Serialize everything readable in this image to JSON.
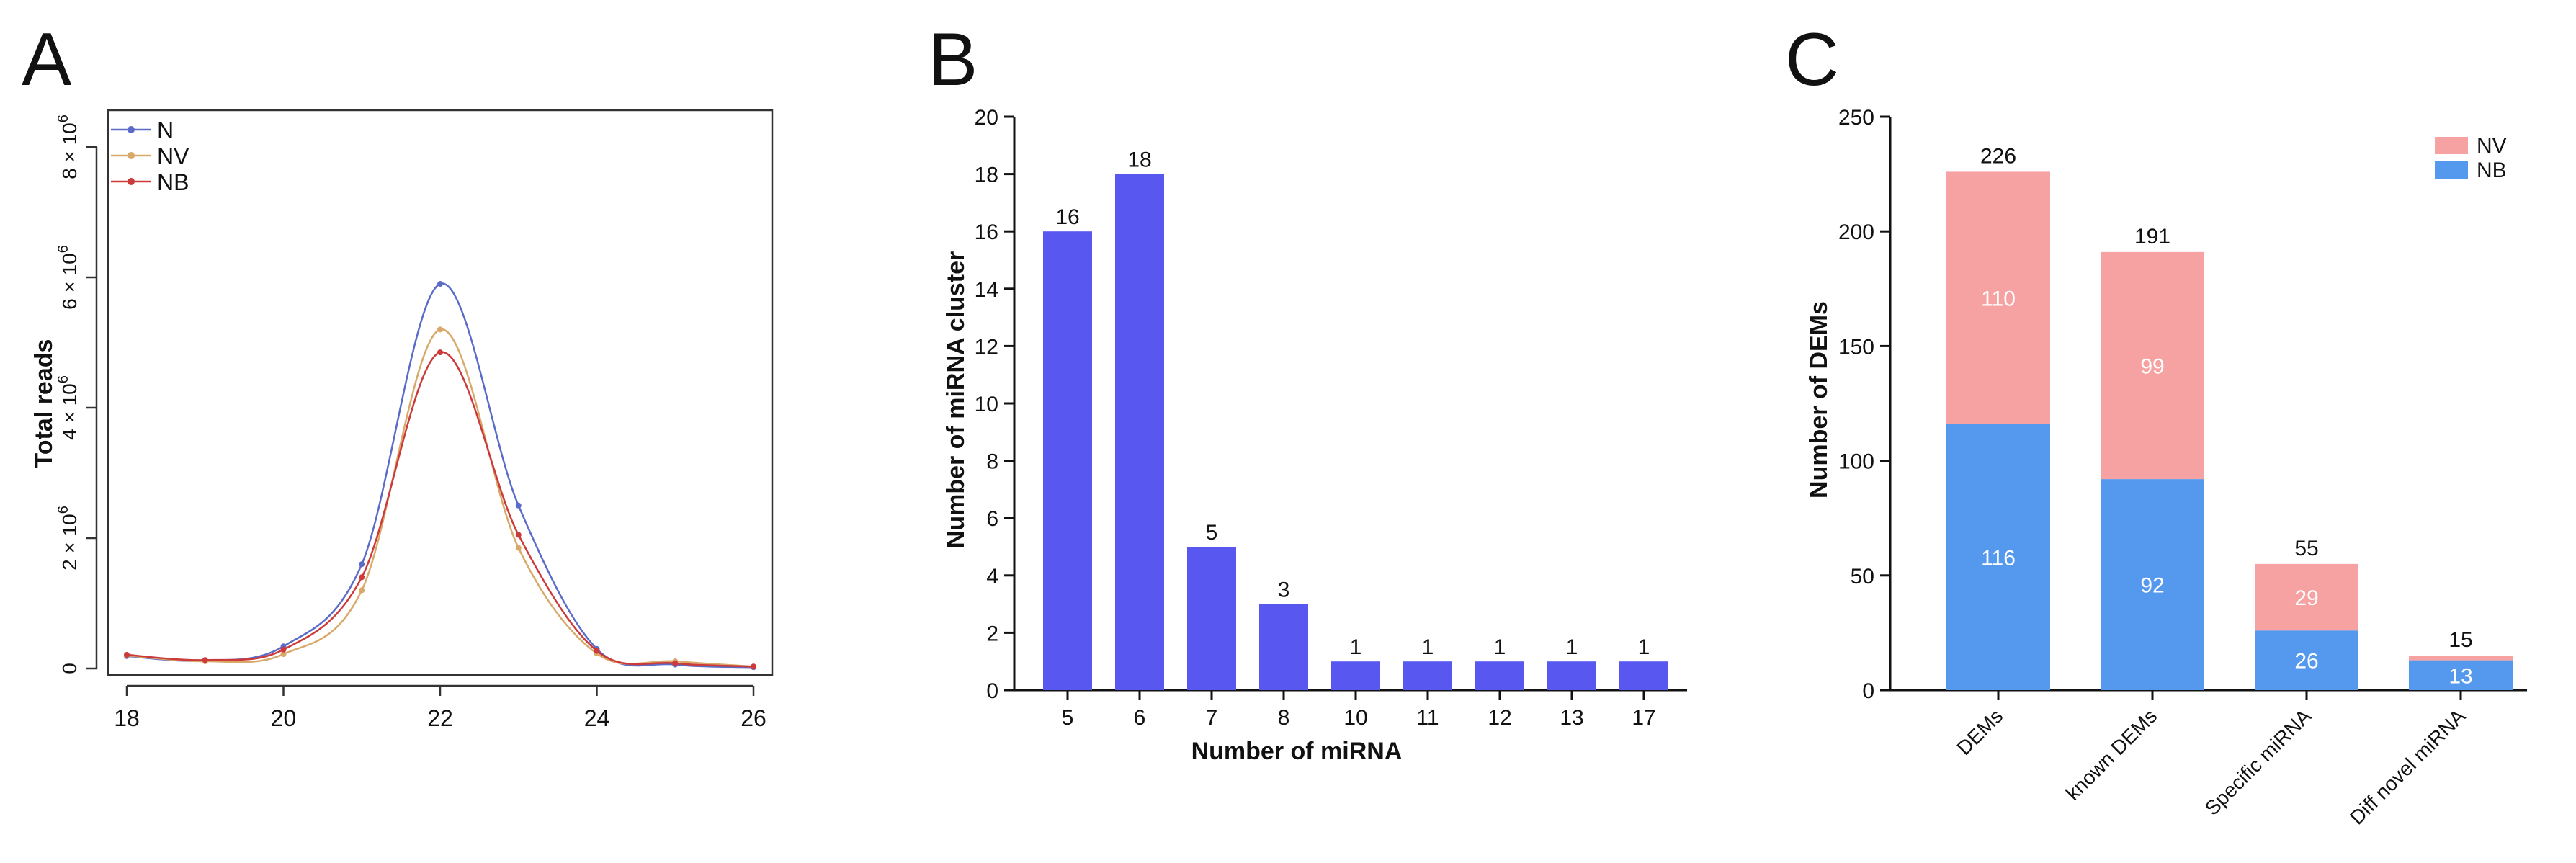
{
  "chart_data": [
    {
      "panel_letter": "A",
      "type": "line",
      "title": "",
      "xlabel": "",
      "ylabel": "Total reads",
      "xlim": [
        18,
        26
      ],
      "ylim": [
        0,
        8000000
      ],
      "x_ticks": [
        18,
        20,
        22,
        24,
        26
      ],
      "y_ticks": [
        {
          "value": 0,
          "base": "0",
          "exp": ""
        },
        {
          "value": 2000000,
          "base": "2 × 10",
          "exp": "6"
        },
        {
          "value": 4000000,
          "base": "4 × 10",
          "exp": "6"
        },
        {
          "value": 6000000,
          "base": "6 × 10",
          "exp": "6"
        },
        {
          "value": 8000000,
          "base": "8 × 10",
          "exp": "6"
        }
      ],
      "x": [
        18,
        19,
        20,
        21,
        22,
        23,
        24,
        25,
        26
      ],
      "series": [
        {
          "name": "N",
          "color": "#5a6cc8",
          "values": [
            190000,
            120000,
            340000,
            1600000,
            5900000,
            2500000,
            300000,
            60000,
            20000
          ]
        },
        {
          "name": "NV",
          "color": "#d9a96a",
          "values": [
            200000,
            110000,
            220000,
            1200000,
            5200000,
            1850000,
            230000,
            110000,
            30000
          ]
        },
        {
          "name": "NB",
          "color": "#cc3a3a",
          "values": [
            210000,
            130000,
            290000,
            1400000,
            4850000,
            2050000,
            270000,
            80000,
            30000
          ]
        }
      ],
      "legend": "top-left"
    },
    {
      "panel_letter": "B",
      "type": "bar",
      "title": "",
      "xlabel": "Number of miRNA",
      "ylabel": "Number of miRNA cluster",
      "ylim": [
        0,
        20
      ],
      "y_ticks": [
        0,
        2,
        4,
        6,
        8,
        10,
        12,
        14,
        16,
        18,
        20
      ],
      "color": "#5858f0",
      "categories": [
        "5",
        "6",
        "7",
        "8",
        "10",
        "11",
        "12",
        "13",
        "17"
      ],
      "values": [
        16,
        18,
        5,
        3,
        1,
        1,
        1,
        1,
        1
      ],
      "data_labels": [
        "16",
        "18",
        "5",
        "3",
        "1",
        "1",
        "1",
        "1",
        "1"
      ]
    },
    {
      "panel_letter": "C",
      "type": "bar",
      "stacked": true,
      "title": "",
      "xlabel": "",
      "ylabel": "Number of DEMs",
      "ylim": [
        0,
        250
      ],
      "y_ticks": [
        0,
        50,
        100,
        150,
        200,
        250
      ],
      "categories": [
        "DEMs",
        "known DEMs",
        "Specific miRNA",
        "Diff novel miRNA"
      ],
      "series": [
        {
          "name": "NB",
          "color": "#5599ee",
          "values": [
            116,
            92,
            26,
            13
          ],
          "labels": [
            "116",
            "92",
            "26",
            "13"
          ]
        },
        {
          "name": "NV",
          "color": "#f6a2a2",
          "values": [
            110,
            99,
            29,
            2
          ],
          "labels": [
            "110",
            "99",
            "29",
            ""
          ]
        }
      ],
      "totals": [
        "226",
        "191",
        "55",
        "15"
      ],
      "legend_order": [
        "NV",
        "NB"
      ],
      "legend": "top-right"
    }
  ]
}
